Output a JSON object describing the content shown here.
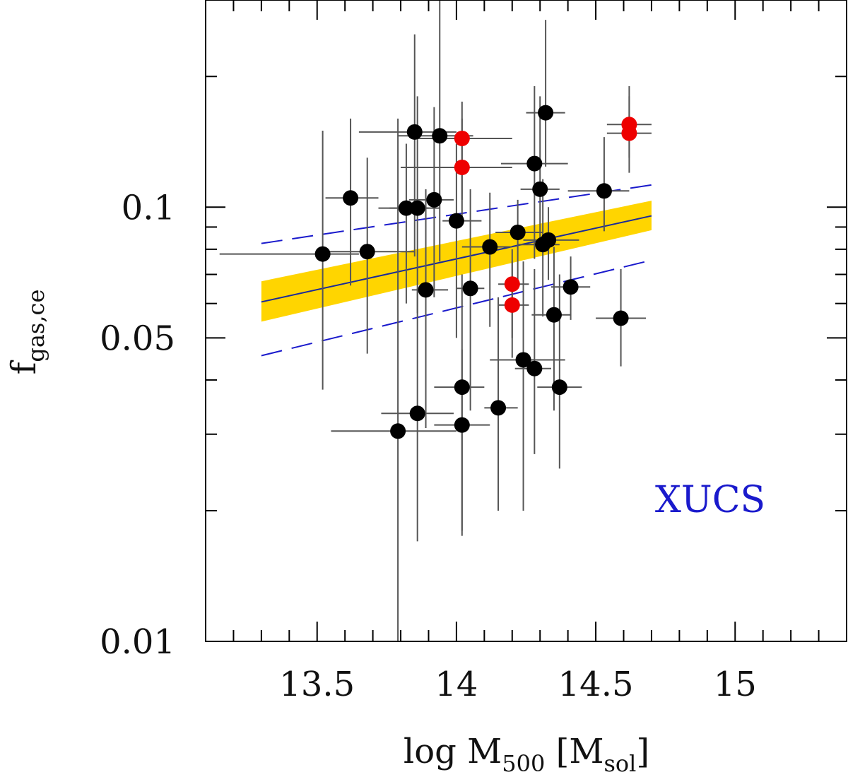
{
  "chart_data": {
    "type": "scatter",
    "title": "",
    "xlabel": {
      "base": "log M",
      "sub": "500",
      "unit_open": " [M",
      "unit_sub": "sol",
      "unit_close": "]"
    },
    "ylabel": {
      "base": "f",
      "sub": "gas,ce"
    },
    "x_scale": "linear",
    "y_scale": "log",
    "xlim": [
      13.1,
      15.4
    ],
    "ylim": [
      0.01,
      0.3
    ],
    "x_ticks": [
      13.5,
      14,
      14.5,
      15
    ],
    "x_tick_labels": [
      "13.5",
      "14",
      "14.5",
      "15"
    ],
    "y_ticks": [
      0.01,
      0.05,
      0.1
    ],
    "y_tick_labels": [
      "0.01",
      "0.05",
      "0.1"
    ],
    "grid": false,
    "annotations": [
      {
        "text": "XUCS",
        "color": "#1a1acc"
      }
    ],
    "colors": {
      "black_points": "#000000",
      "red_points": "#ee0000",
      "errorbar": "#555555",
      "fit_line": "#1a2a9a",
      "band": "#ffd500",
      "scatter_dash": "#1a1acc"
    },
    "fit": {
      "x_range": [
        13.3,
        14.7
      ],
      "center": [
        0.0605,
        0.0955
      ],
      "band_lower": [
        0.0545,
        0.0885
      ],
      "band_upper": [
        0.0675,
        0.1035
      ],
      "scatter_lower": [
        0.0455,
        0.0755
      ],
      "scatter_upper": [
        0.0825,
        0.1125
      ]
    },
    "series": [
      {
        "name": "",
        "color": "#000000",
        "points": [
          {
            "x": 13.52,
            "y": 0.078,
            "xlo": 13.15,
            "xhi": 13.65,
            "ylo": 0.038,
            "yhi": 0.15
          },
          {
            "x": 13.62,
            "y": 0.105,
            "xlo": 13.53,
            "xhi": 13.72,
            "ylo": 0.066,
            "yhi": 0.16
          },
          {
            "x": 13.68,
            "y": 0.079,
            "xlo": 13.5,
            "xhi": 13.85,
            "ylo": 0.046,
            "yhi": 0.13
          },
          {
            "x": 13.79,
            "y": 0.0305,
            "xlo": 13.55,
            "xhi": 14.0,
            "ylo": 0.0095,
            "yhi": 0.16
          },
          {
            "x": 13.82,
            "y": 0.0995,
            "xlo": 13.72,
            "xhi": 13.9,
            "ylo": 0.06,
            "yhi": 0.14
          },
          {
            "x": 13.85,
            "y": 0.149,
            "xlo": 13.65,
            "xhi": 14.0,
            "ylo": 0.077,
            "yhi": 0.25
          },
          {
            "x": 13.86,
            "y": 0.0335,
            "xlo": 13.73,
            "xhi": 13.99,
            "ylo": 0.017,
            "yhi": 0.065
          },
          {
            "x": 13.86,
            "y": 0.0995,
            "xlo": 13.76,
            "xhi": 13.94,
            "ylo": 0.057,
            "yhi": 0.18
          },
          {
            "x": 13.89,
            "y": 0.0645,
            "xlo": 13.84,
            "xhi": 13.97,
            "ylo": 0.031,
            "yhi": 0.11
          },
          {
            "x": 13.92,
            "y": 0.104,
            "xlo": 13.83,
            "xhi": 13.99,
            "ylo": 0.062,
            "yhi": 0.17
          },
          {
            "x": 13.94,
            "y": 0.146,
            "xlo": 13.79,
            "xhi": 14.06,
            "ylo": 0.075,
            "yhi": 0.32
          },
          {
            "x": 14.0,
            "y": 0.093,
            "xlo": 13.95,
            "xhi": 14.09,
            "ylo": 0.05,
            "yhi": 0.14
          },
          {
            "x": 14.02,
            "y": 0.0385,
            "xlo": 13.92,
            "xhi": 14.1,
            "ylo": 0.018,
            "yhi": 0.07
          },
          {
            "x": 14.02,
            "y": 0.0315,
            "xlo": 13.92,
            "xhi": 14.12,
            "ylo": 0.0175,
            "yhi": 0.047
          },
          {
            "x": 14.05,
            "y": 0.065,
            "xlo": 14.0,
            "xhi": 14.1,
            "ylo": 0.034,
            "yhi": 0.11
          },
          {
            "x": 14.12,
            "y": 0.081,
            "xlo": 14.02,
            "xhi": 14.2,
            "ylo": 0.053,
            "yhi": 0.108
          },
          {
            "x": 14.15,
            "y": 0.0345,
            "xlo": 14.1,
            "xhi": 14.22,
            "ylo": 0.02,
            "yhi": 0.062
          },
          {
            "x": 14.22,
            "y": 0.0875,
            "xlo": 14.14,
            "xhi": 14.31,
            "ylo": 0.0655,
            "yhi": 0.104
          },
          {
            "x": 14.24,
            "y": 0.0445,
            "xlo": 14.12,
            "xhi": 14.39,
            "ylo": 0.02,
            "yhi": 0.075
          },
          {
            "x": 14.28,
            "y": 0.0425,
            "xlo": 14.21,
            "xhi": 14.34,
            "ylo": 0.027,
            "yhi": 0.072
          },
          {
            "x": 14.28,
            "y": 0.126,
            "xlo": 14.16,
            "xhi": 14.4,
            "ylo": 0.076,
            "yhi": 0.19
          },
          {
            "x": 14.3,
            "y": 0.11,
            "xlo": 14.23,
            "xhi": 14.37,
            "ylo": 0.083,
            "yhi": 0.18
          },
          {
            "x": 14.31,
            "y": 0.082,
            "xlo": 14.22,
            "xhi": 14.37,
            "ylo": 0.056,
            "yhi": 0.116
          },
          {
            "x": 14.32,
            "y": 0.165,
            "xlo": 14.25,
            "xhi": 14.39,
            "ylo": 0.124,
            "yhi": 0.27
          },
          {
            "x": 14.33,
            "y": 0.084,
            "xlo": 14.24,
            "xhi": 14.44,
            "ylo": 0.068,
            "yhi": 0.1
          },
          {
            "x": 14.35,
            "y": 0.0565,
            "xlo": 14.27,
            "xhi": 14.41,
            "ylo": 0.034,
            "yhi": 0.081
          },
          {
            "x": 14.37,
            "y": 0.0385,
            "xlo": 14.29,
            "xhi": 14.45,
            "ylo": 0.025,
            "yhi": 0.07
          },
          {
            "x": 14.41,
            "y": 0.0655,
            "xlo": 14.34,
            "xhi": 14.48,
            "ylo": 0.055,
            "yhi": 0.077
          },
          {
            "x": 14.53,
            "y": 0.109,
            "xlo": 14.4,
            "xhi": 14.62,
            "ylo": 0.088,
            "yhi": 0.145
          },
          {
            "x": 14.59,
            "y": 0.0555,
            "xlo": 14.5,
            "xhi": 14.68,
            "ylo": 0.043,
            "yhi": 0.072
          }
        ]
      },
      {
        "name": "",
        "color": "#ee0000",
        "points": [
          {
            "x": 14.02,
            "y": 0.144,
            "xlo": 13.85,
            "xhi": 14.2,
            "ylo": 0.104,
            "yhi": 0.175
          },
          {
            "x": 14.02,
            "y": 0.1235,
            "xlo": 13.8,
            "xhi": 14.2,
            "ylo": 0.095,
            "yhi": 0.16
          },
          {
            "x": 14.2,
            "y": 0.0665,
            "xlo": 14.15,
            "xhi": 14.26,
            "ylo": 0.05,
            "yhi": 0.08
          },
          {
            "x": 14.2,
            "y": 0.0595,
            "xlo": 14.15,
            "xhi": 14.26,
            "ylo": 0.045,
            "yhi": 0.075
          },
          {
            "x": 14.62,
            "y": 0.155,
            "xlo": 14.54,
            "xhi": 14.7,
            "ylo": 0.13,
            "yhi": 0.19
          },
          {
            "x": 14.62,
            "y": 0.148,
            "xlo": 14.54,
            "xhi": 14.7,
            "ylo": 0.12,
            "yhi": 0.18
          }
        ]
      }
    ]
  }
}
